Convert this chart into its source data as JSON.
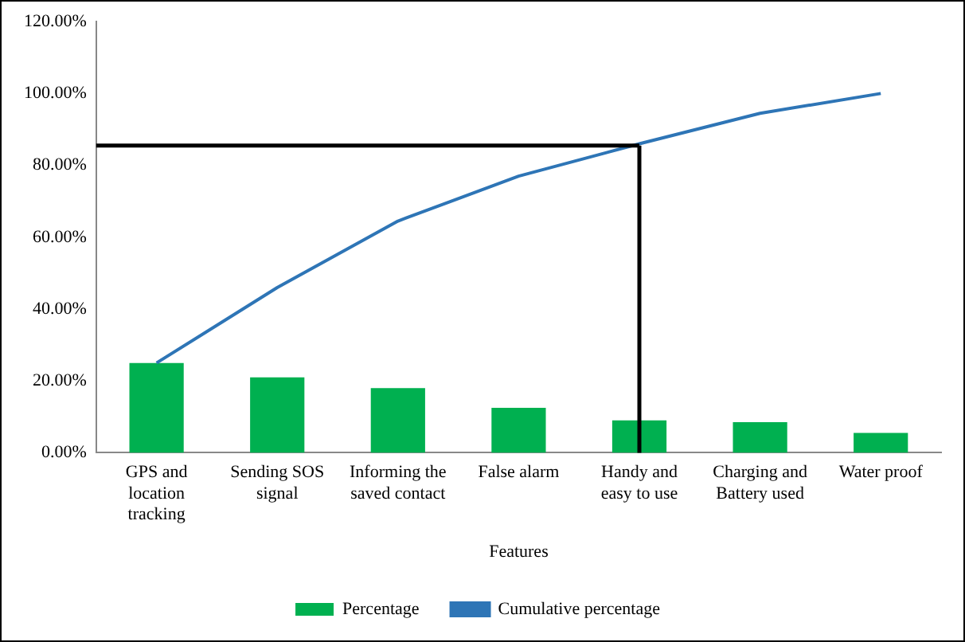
{
  "chart_data": {
    "type": "bar",
    "xlabel": "Features",
    "categories": [
      "GPS and location tracking",
      "Sending SOS signal",
      "Informing the saved contact",
      "False alarm",
      "Handy and easy to use",
      "Charging and Battery used",
      "Water proof"
    ],
    "series": [
      {
        "name": "Percentage",
        "color": "#00b050",
        "values": [
          25,
          21,
          18,
          12.5,
          9,
          8.5,
          5.5
        ]
      },
      {
        "name": "Cumulative percentage",
        "type": "line",
        "color": "#2e75b6",
        "values": [
          25,
          46,
          64.5,
          77,
          86,
          94.5,
          100
        ]
      }
    ],
    "ylim": [
      0,
      120
    ],
    "yticks": [
      {
        "value": 0,
        "label": "0.00%"
      },
      {
        "value": 20,
        "label": "20.00%"
      },
      {
        "value": 40,
        "label": "40.00%"
      },
      {
        "value": 60,
        "label": "60.00%"
      },
      {
        "value": 80,
        "label": "80.00%"
      },
      {
        "value": 100,
        "label": "100.00%"
      },
      {
        "value": 120,
        "label": "120.00%"
      }
    ],
    "ref_lines": [
      {
        "axis": "y",
        "value": 85.5,
        "color": "#000000"
      },
      {
        "axis": "x",
        "value": "Handy and easy to use",
        "color": "#000000"
      }
    ],
    "grid": false,
    "legend": "bottom",
    "marker": "none",
    "line_style": "solid"
  }
}
